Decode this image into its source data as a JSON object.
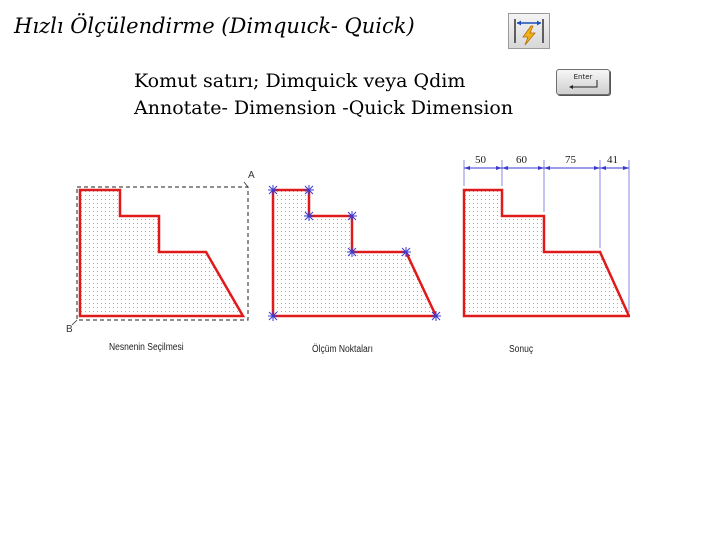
{
  "title": "Hızlı Ölçülendirme (Dimquıck- Quick)",
  "icons": {
    "quick_dimension": "quick-dimension-icon",
    "enter_key": "enter-key-icon"
  },
  "command_line": "Komut satırı; Dimquick  veya Qdim",
  "menu_path": "Annotate- Dimension -Quick Dimension",
  "enter_key_label": "Enter",
  "figure": {
    "label_a": "A",
    "label_b": "B",
    "captions": [
      "Nesnenin Seçilmesi",
      "Ölçüm Noktaları",
      "Sonuç"
    ],
    "dimensions": [
      "50",
      "60",
      "75",
      "41"
    ],
    "colors": {
      "outline": "#e01a1a",
      "hatch": "#b8b8b8",
      "marker": "#3a3ad0",
      "selection": "#222222"
    }
  }
}
